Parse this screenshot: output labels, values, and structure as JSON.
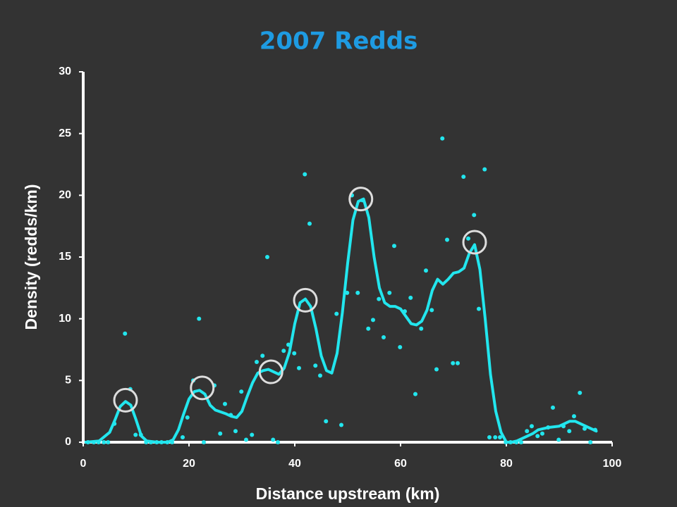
{
  "chart_data": {
    "type": "scatter",
    "title": "2007 Redds",
    "xlabel": "Distance upstream (km)",
    "ylabel": "Density (redds/km)",
    "xlim": [
      0,
      100
    ],
    "xticks": [
      0,
      20,
      40,
      60,
      80,
      100
    ],
    "ylim": [
      0,
      30
    ],
    "yticks": [
      0,
      5,
      10,
      15,
      20,
      25,
      30
    ],
    "grid": false,
    "series": [
      {
        "type": "scatter",
        "color": "#22e6ee",
        "x": [
          0.9,
          2,
          2.9,
          3.9,
          4.7,
          5.9,
          7.9,
          8.9,
          9.9,
          10.9,
          11.9,
          12.8,
          13.9,
          14.8,
          15.9,
          16.8,
          18.8,
          19.7,
          20.8,
          21.9,
          22.8,
          24.8,
          25.9,
          26.8,
          27.9,
          28.8,
          29.9,
          30.8,
          31.9,
          32.8,
          33.9,
          34.8,
          35.9,
          36.8,
          37.9,
          38.8,
          39.9,
          40.8,
          41.9,
          42.8,
          43.9,
          44.8,
          45.9,
          47.9,
          48.8,
          49.9,
          50.8,
          51.9,
          52.8,
          53.9,
          54.8,
          55.9,
          56.8,
          57.9,
          58.8,
          59.9,
          60.8,
          61.9,
          62.8,
          63.9,
          64.8,
          65.9,
          66.8,
          67.9,
          68.8,
          69.9,
          70.8,
          71.9,
          72.8,
          73.9,
          74.8,
          75.9,
          76.8,
          77.9,
          78.8,
          79.9,
          80.8,
          81.9,
          82.8,
          83.9,
          84.8,
          85.9,
          86.8,
          87.9,
          88.8,
          89.9,
          90.8,
          91.9,
          92.8,
          93.9,
          94.8,
          95.9,
          96.8
        ],
        "values": [
          0,
          0,
          0,
          0,
          0,
          1.5,
          8.8,
          4.3,
          0.6,
          0.6,
          0,
          0,
          0,
          0,
          0,
          0,
          0.4,
          2.0,
          5.0,
          10.0,
          0,
          4.6,
          0.7,
          3.1,
          2.2,
          0.9,
          4.1,
          0.2,
          0.6,
          6.5,
          7.0,
          15.0,
          0.2,
          0,
          7.4,
          7.9,
          7.2,
          6.0,
          21.7,
          17.7,
          6.2,
          5.4,
          1.7,
          10.4,
          1.4,
          12.1,
          20.0,
          12.1,
          19.6,
          9.2,
          9.9,
          11.6,
          8.5,
          12.1,
          15.9,
          7.7,
          10.6,
          11.7,
          3.9,
          9.2,
          13.9,
          10.7,
          5.9,
          24.6,
          16.4,
          6.4,
          6.4,
          21.5,
          16.5,
          18.4,
          10.8,
          22.1,
          0.4,
          0.4,
          0.4,
          0,
          0,
          0,
          0,
          0.9,
          1.3,
          0.5,
          0.7,
          1.2,
          2.8,
          0.2,
          1.3,
          0.9,
          2.1,
          4.0,
          1.1,
          0,
          1.0
        ]
      },
      {
        "type": "line",
        "color": "#22e6ee",
        "x": [
          0.5,
          3,
          5,
          6,
          7,
          8,
          9,
          10,
          11,
          12,
          14,
          16,
          17,
          18,
          19,
          20,
          21,
          22,
          23,
          24,
          25,
          27,
          28,
          29,
          30,
          31,
          32,
          33,
          34,
          35,
          36,
          37,
          38,
          39,
          40,
          41,
          42,
          43,
          44,
          45,
          46,
          47,
          48,
          49,
          50,
          51,
          52,
          53,
          54,
          55,
          56,
          57,
          58,
          59,
          60,
          61,
          62,
          63,
          64,
          65,
          66,
          67,
          68,
          69,
          70,
          71,
          72,
          73,
          74,
          75,
          76,
          77,
          78,
          79,
          80,
          81,
          82,
          83,
          84,
          85,
          86,
          87,
          88,
          90,
          91,
          92,
          93,
          94,
          95,
          96,
          97
        ],
        "values": [
          0,
          0.1,
          0.8,
          1.8,
          2.9,
          3.3,
          3.0,
          1.8,
          0.5,
          0.1,
          0,
          0,
          0.2,
          1,
          2.3,
          3.5,
          4.1,
          4.2,
          3.9,
          3.0,
          2.6,
          2.3,
          2.1,
          2.0,
          2.5,
          3.7,
          4.8,
          5.6,
          5.8,
          5.9,
          5.7,
          5.5,
          6.0,
          7.3,
          9.6,
          11.3,
          11.6,
          11.0,
          9.2,
          7.0,
          5.8,
          5.6,
          7.2,
          10.5,
          14.5,
          18,
          19.5,
          19.7,
          18.2,
          15,
          12.5,
          11.3,
          11.0,
          11.0,
          10.8,
          10.2,
          9.6,
          9.5,
          9.8,
          10.7,
          12.3,
          13.2,
          12.8,
          13.2,
          13.7,
          13.8,
          14.1,
          15.3,
          16.0,
          14,
          10,
          5.5,
          2.5,
          0.8,
          0,
          0,
          0.1,
          0.3,
          0.5,
          0.7,
          1.0,
          1.1,
          1.2,
          1.3,
          1.5,
          1.7,
          1.7,
          1.5,
          1.3,
          1.1,
          0.9
        ]
      }
    ],
    "highlights": {
      "color": "#dddddd",
      "x": [
        8,
        22.5,
        35.5,
        42,
        52.5,
        74
      ],
      "y": [
        3.4,
        4.4,
        5.7,
        11.5,
        19.7,
        16.2
      ]
    }
  }
}
